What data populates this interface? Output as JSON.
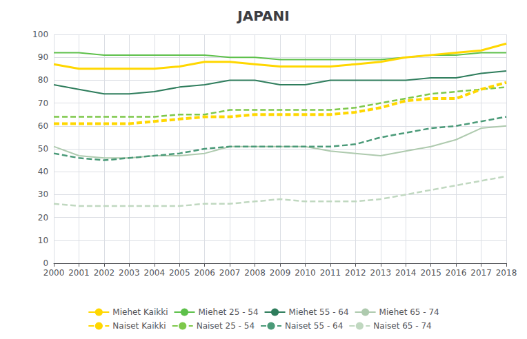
{
  "chart_data": {
    "type": "line",
    "title": "JAPANI",
    "categories": [
      "2000",
      "2001",
      "2002",
      "2003",
      "2004",
      "2005",
      "2006",
      "2007",
      "2008",
      "2009",
      "2010",
      "2011",
      "2012",
      "2013",
      "2014",
      "2015",
      "2016",
      "2017",
      "2018"
    ],
    "series": [
      {
        "name": "Miehet Kaikki",
        "color": "#FFD700",
        "line_style": "solid",
        "values": [
          87,
          85,
          85,
          85,
          85,
          86,
          88,
          88,
          87,
          86,
          86,
          86,
          87,
          88,
          90,
          91,
          92,
          93,
          96
        ]
      },
      {
        "name": "Miehet 25 - 54",
        "color": "#5DC04A",
        "line_style": "solid",
        "values": [
          92,
          92,
          91,
          91,
          91,
          91,
          91,
          90,
          90,
          89,
          89,
          89,
          89,
          89,
          90,
          91,
          91,
          92,
          92
        ]
      },
      {
        "name": "Miehet 55 - 64",
        "color": "#2E7D5C",
        "line_style": "solid",
        "values": [
          78,
          76,
          74,
          74,
          75,
          77,
          78,
          80,
          80,
          78,
          78,
          80,
          80,
          80,
          80,
          81,
          81,
          83,
          84
        ]
      },
      {
        "name": "Miehet 65 - 74",
        "color": "#AECAAE",
        "line_style": "solid",
        "values": [
          51,
          47,
          46,
          46,
          47,
          47,
          48,
          51,
          51,
          51,
          51,
          49,
          48,
          47,
          49,
          51,
          54,
          59,
          60
        ]
      },
      {
        "name": "Naiset Kaikki",
        "color": "#FFD700",
        "line_style": "dashed",
        "values": [
          61,
          61,
          61,
          61,
          62,
          63,
          64,
          64,
          65,
          65,
          65,
          65,
          66,
          68,
          71,
          72,
          72,
          76,
          79
        ]
      },
      {
        "name": "Naiset 25 - 54",
        "color": "#7DC84A",
        "line_style": "dashed",
        "values": [
          64,
          64,
          64,
          64,
          64,
          65,
          65,
          67,
          67,
          67,
          67,
          67,
          68,
          70,
          72,
          74,
          75,
          76,
          77
        ]
      },
      {
        "name": "Naiset 55 - 64",
        "color": "#4A9A78",
        "line_style": "dashed",
        "values": [
          48,
          46,
          45,
          46,
          47,
          48,
          50,
          51,
          51,
          51,
          51,
          51,
          52,
          55,
          57,
          59,
          60,
          62,
          64
        ]
      },
      {
        "name": "Naiset 65 - 74",
        "color": "#C0D8C0",
        "line_style": "dashed",
        "values": [
          26,
          25,
          25,
          25,
          25,
          25,
          26,
          26,
          27,
          28,
          27,
          27,
          27,
          28,
          30,
          32,
          34,
          36,
          38
        ]
      }
    ],
    "ylim": [
      0,
      100
    ],
    "yticks": [
      0,
      10,
      20,
      30,
      40,
      50,
      60,
      70,
      80,
      90,
      100
    ],
    "grid": true,
    "legend": "bottom"
  }
}
